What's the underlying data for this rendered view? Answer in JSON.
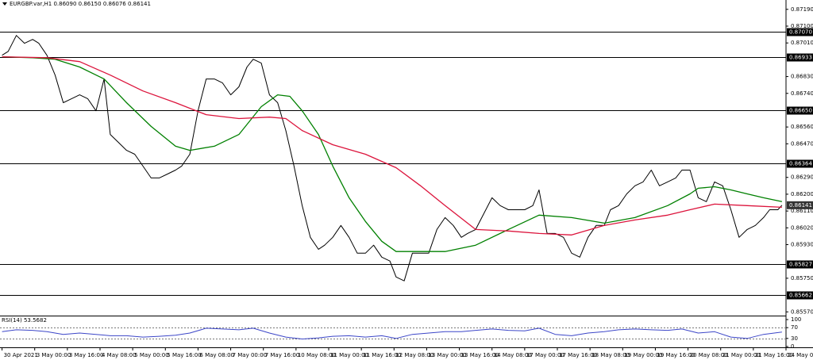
{
  "chart_data": [
    {
      "type": "line",
      "title": "EURGBP.var,H1  0.86090 0.86150 0.86076 0.86141",
      "xlim": [
        -1,
        384
      ],
      "xticks": [
        {
          "value": 0,
          "label": "30 Apr 2021"
        },
        {
          "value": 16,
          "label": "3 May 00:00"
        },
        {
          "value": 32,
          "label": "3 May 16:00"
        },
        {
          "value": 48,
          "label": "4 May 08:00"
        },
        {
          "value": 64,
          "label": "5 May 00:00"
        },
        {
          "value": 80,
          "label": "5 May 16:00"
        },
        {
          "value": 96,
          "label": "6 May 08:00"
        },
        {
          "value": 112,
          "label": "7 May 00:00"
        },
        {
          "value": 128,
          "label": "7 May 16:00"
        },
        {
          "value": 144,
          "label": "10 May 08:00"
        },
        {
          "value": 160,
          "label": "11 May 00:00"
        },
        {
          "value": 176,
          "label": "11 May 16:00"
        },
        {
          "value": 192,
          "label": "12 May 08:00"
        },
        {
          "value": 208,
          "label": "13 May 00:00"
        },
        {
          "value": 224,
          "label": "13 May 16:00"
        },
        {
          "value": 240,
          "label": "14 May 08:00"
        },
        {
          "value": 256,
          "label": "17 May 00:00"
        },
        {
          "value": 272,
          "label": "17 May 16:00"
        },
        {
          "value": 288,
          "label": "18 May 08:00"
        },
        {
          "value": 304,
          "label": "19 May 00:00"
        },
        {
          "value": 320,
          "label": "19 May 16:00"
        },
        {
          "value": 336,
          "label": "20 May 08:00"
        },
        {
          "value": 352,
          "label": "21 May 00:00"
        },
        {
          "value": 368,
          "label": "21 May 16:00"
        },
        {
          "value": 384,
          "label": "24 May 08:00"
        }
      ],
      "ylim": [
        0.8555,
        0.8724
      ],
      "yticks": [
        {
          "value": 0.8719,
          "label": "0.87190"
        },
        {
          "value": 0.871,
          "label": "0.87100"
        },
        {
          "value": 0.8701,
          "label": "0.87010"
        },
        {
          "value": 0.8683,
          "label": "0.86830"
        },
        {
          "value": 0.8674,
          "label": "0.86740"
        },
        {
          "value": 0.8656,
          "label": "0.86560"
        },
        {
          "value": 0.8647,
          "label": "0.86470"
        },
        {
          "value": 0.8629,
          "label": "0.86290"
        },
        {
          "value": 0.862,
          "label": "0.86200"
        },
        {
          "value": 0.8611,
          "label": "0.86110"
        },
        {
          "value": 0.8602,
          "label": "0.86020"
        },
        {
          "value": 0.8593,
          "label": "0.85930"
        },
        {
          "value": 0.8575,
          "label": "0.85750"
        },
        {
          "value": 0.8557,
          "label": "0.85570"
        }
      ],
      "levels": [
        {
          "value": 0.8707,
          "label": "0.87070"
        },
        {
          "value": 0.86933,
          "label": "0.86933"
        },
        {
          "value": 0.8665,
          "label": "0.86650"
        },
        {
          "value": 0.86364,
          "label": "0.86364"
        },
        {
          "value": 0.85827,
          "label": "0.85827"
        },
        {
          "value": 0.85662,
          "label": "0.85662"
        }
      ],
      "last_price": {
        "value": 0.86141,
        "label": "0.86141"
      },
      "series": [
        {
          "color": "#000000",
          "x": [
            0,
            3,
            7,
            11,
            15,
            18,
            22,
            26,
            30,
            34,
            38,
            42,
            46,
            50,
            53,
            57,
            61,
            65,
            69,
            73,
            77,
            81,
            85,
            88,
            92,
            96,
            100,
            104,
            108,
            112,
            116,
            120,
            123,
            127,
            131,
            135,
            139,
            143,
            147,
            151,
            155,
            158,
            162,
            166,
            170,
            174,
            178,
            182,
            186,
            190,
            193,
            197,
            201,
            205,
            209,
            213,
            217,
            221,
            225,
            228,
            232,
            236,
            240,
            244,
            248,
            252,
            256,
            260,
            263,
            267,
            271,
            275,
            279,
            283,
            287,
            291,
            295,
            298,
            302,
            306,
            310,
            314,
            318,
            322,
            326,
            330,
            333,
            337,
            341,
            345,
            349,
            353,
            357,
            361,
            365,
            369,
            373,
            376,
            380,
            382
          ],
          "values": [
            0.86944,
            0.86965,
            0.8705,
            0.87008,
            0.87029,
            0.87008,
            0.86944,
            0.86838,
            0.8669,
            0.86711,
            0.86732,
            0.86711,
            0.86647,
            0.86817,
            0.8652,
            0.86478,
            0.86435,
            0.86414,
            0.86351,
            0.86287,
            0.86287,
            0.86308,
            0.86329,
            0.86351,
            0.86414,
            0.86647,
            0.86817,
            0.86817,
            0.86796,
            0.86732,
            0.86775,
            0.86881,
            0.86923,
            0.86902,
            0.86732,
            0.8669,
            0.86541,
            0.86351,
            0.86139,
            0.85969,
            0.85905,
            0.85927,
            0.85969,
            0.86033,
            0.85969,
            0.85884,
            0.85884,
            0.85927,
            0.85863,
            0.85842,
            0.85757,
            0.85736,
            0.85884,
            0.85884,
            0.85884,
            0.86011,
            0.86075,
            0.86033,
            0.85969,
            0.8599,
            0.86011,
            0.86096,
            0.86181,
            0.86139,
            0.86117,
            0.86117,
            0.86117,
            0.86139,
            0.86223,
            0.8599,
            0.8599,
            0.85969,
            0.85884,
            0.85863,
            0.85969,
            0.86033,
            0.86033,
            0.86117,
            0.86139,
            0.86202,
            0.86245,
            0.86266,
            0.86329,
            0.86245,
            0.86266,
            0.86287,
            0.86329,
            0.86329,
            0.86181,
            0.8616,
            0.86266,
            0.86245,
            0.86117,
            0.85969,
            0.86011,
            0.86033,
            0.86075,
            0.86117,
            0.86117,
            0.86141
          ]
        },
        {
          "color": "#008000",
          "x": [
            0,
            15,
            26,
            38,
            50,
            61,
            73,
            85,
            92,
            104,
            116,
            127,
            135,
            141,
            147,
            155,
            162,
            170,
            178,
            186,
            193,
            201,
            217,
            232,
            248,
            263,
            279,
            295,
            310,
            326,
            337,
            341,
            349,
            357,
            365,
            373,
            382
          ],
          "values": [
            0.86936,
            0.86931,
            0.86923,
            0.86881,
            0.86817,
            0.8669,
            0.86563,
            0.86457,
            0.86435,
            0.86457,
            0.8652,
            0.86669,
            0.86732,
            0.86724,
            0.86647,
            0.8652,
            0.86351,
            0.86181,
            0.86054,
            0.85948,
            0.85893,
            0.85893,
            0.85893,
            0.85927,
            0.86011,
            0.86088,
            0.86075,
            0.86045,
            0.86075,
            0.86139,
            0.86202,
            0.86232,
            0.8624,
            0.86223,
            0.86202,
            0.86181,
            0.8616
          ]
        },
        {
          "color": "#dc143c",
          "x": [
            0,
            22,
            38,
            53,
            69,
            85,
            100,
            116,
            131,
            139,
            147,
            162,
            178,
            193,
            205,
            217,
            232,
            248,
            263,
            279,
            295,
            310,
            326,
            337,
            349,
            365,
            382
          ],
          "values": [
            0.86936,
            0.86931,
            0.8691,
            0.86838,
            0.86753,
            0.8669,
            0.86626,
            0.86605,
            0.86613,
            0.86605,
            0.86541,
            0.86465,
            0.86414,
            0.86342,
            0.86245,
            0.86139,
            0.86011,
            0.86003,
            0.8599,
            0.85982,
            0.86033,
            0.86062,
            0.86088,
            0.86117,
            0.86147,
            0.86139,
            0.8613
          ]
        }
      ]
    },
    {
      "type": "line",
      "title": "RSI(14) 53.5682",
      "xlim": [
        -1,
        384
      ],
      "ylim": [
        0,
        100
      ],
      "yticks": [
        100,
        70,
        30,
        0
      ],
      "levels": [
        70,
        30
      ],
      "series": [
        {
          "color": "#3c46c8",
          "x": [
            0,
            7,
            15,
            22,
            30,
            38,
            46,
            53,
            61,
            69,
            77,
            85,
            92,
            100,
            108,
            116,
            123,
            131,
            139,
            147,
            155,
            162,
            170,
            178,
            186,
            193,
            201,
            209,
            217,
            225,
            232,
            240,
            248,
            256,
            263,
            271,
            279,
            287,
            295,
            302,
            310,
            318,
            326,
            333,
            341,
            349,
            357,
            365,
            373,
            382
          ],
          "values": [
            55,
            62,
            60,
            55,
            45,
            50,
            45,
            40,
            40,
            35,
            38,
            42,
            50,
            68,
            65,
            62,
            68,
            50,
            35,
            28,
            32,
            38,
            40,
            35,
            40,
            30,
            45,
            50,
            55,
            55,
            60,
            65,
            60,
            58,
            68,
            45,
            40,
            50,
            55,
            62,
            65,
            62,
            60,
            65,
            50,
            55,
            35,
            30,
            45,
            53.5682
          ]
        }
      ]
    }
  ]
}
